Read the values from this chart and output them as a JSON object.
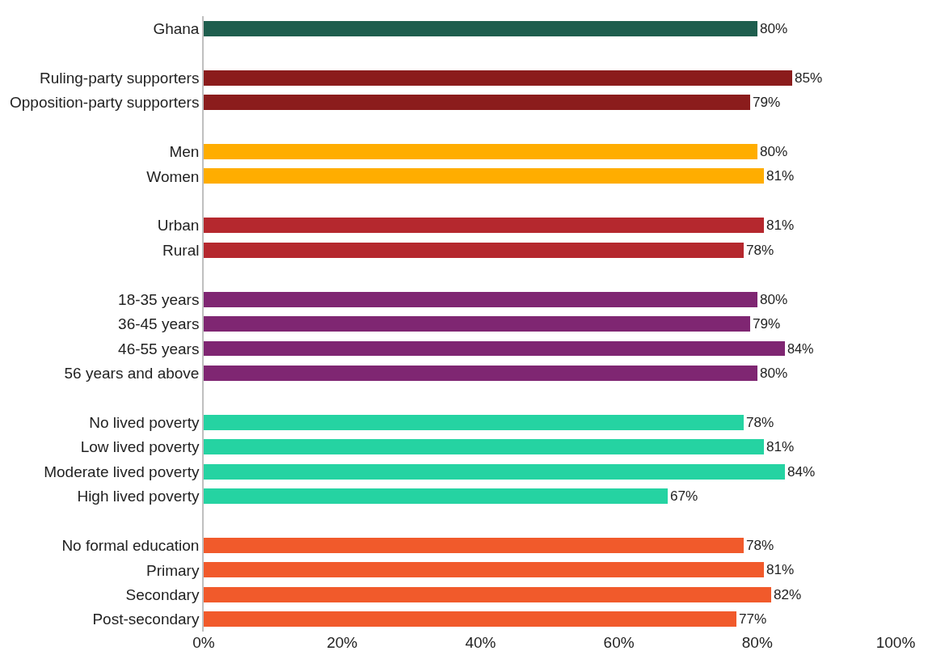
{
  "chart_data": {
    "type": "bar",
    "orientation": "horizontal",
    "categories": [
      "Ghana",
      null,
      "Ruling-party supporters",
      "Opposition-party supporters",
      null,
      "Men",
      "Women",
      null,
      "Urban",
      "Rural",
      null,
      "18-35 years",
      "36-45 years",
      "46-55 years",
      "56 years and above",
      null,
      "No lived poverty",
      "Low lived poverty",
      "Moderate lived poverty",
      "High lived poverty",
      null,
      "No formal education",
      "Primary",
      "Secondary",
      "Post-secondary"
    ],
    "values": [
      80,
      null,
      85,
      79,
      null,
      80,
      81,
      null,
      81,
      78,
      null,
      80,
      79,
      84,
      80,
      null,
      78,
      81,
      84,
      67,
      null,
      78,
      81,
      82,
      77
    ],
    "value_labels": [
      "80%",
      null,
      "85%",
      "79%",
      null,
      "80%",
      "81%",
      null,
      "81%",
      "78%",
      null,
      "80%",
      "79%",
      "84%",
      "80%",
      null,
      "78%",
      "81%",
      "84%",
      "67%",
      null,
      "78%",
      "81%",
      "82%",
      "77%"
    ],
    "colors": [
      "#1e5e4e",
      null,
      "#8b1c1c",
      "#8b1c1c",
      null,
      "#ffad00",
      "#ffad00",
      null,
      "#b5282e",
      "#b5282e",
      null,
      "#7f2672",
      "#7f2672",
      "#7f2672",
      "#7f2672",
      null,
      "#25d3a2",
      "#25d3a2",
      "#25d3a2",
      "#25d3a2",
      null,
      "#f15a2b",
      "#f15a2b",
      "#f15a2b",
      "#f15a2b"
    ],
    "xlim": [
      0,
      100
    ],
    "xticks": [
      {
        "value": 0,
        "label": "0%"
      },
      {
        "value": 20,
        "label": "20%"
      },
      {
        "value": 40,
        "label": "40%"
      },
      {
        "value": 60,
        "label": "60%"
      },
      {
        "value": 80,
        "label": "80%"
      },
      {
        "value": 100,
        "label": "100%"
      }
    ]
  }
}
